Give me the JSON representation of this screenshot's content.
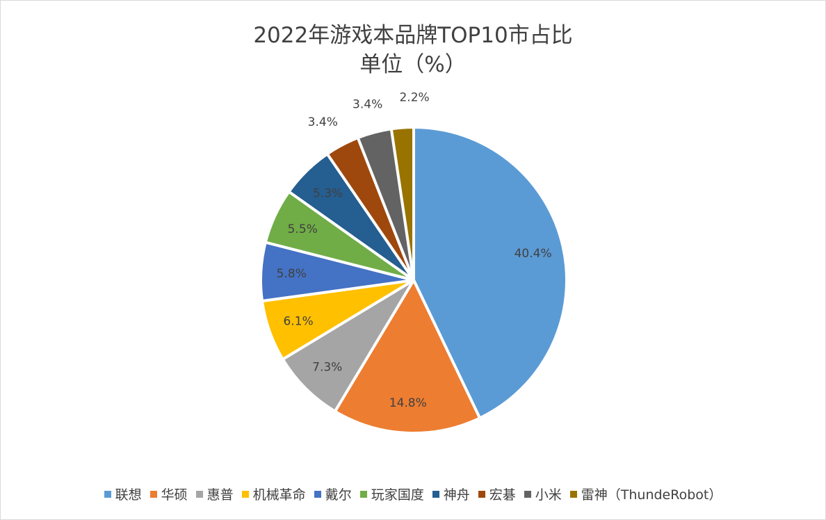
{
  "chart_data": {
    "type": "pie",
    "title": "2022年游戏本品牌TOP10市占比",
    "subtitle": "单位（%）",
    "legend_position": "bottom",
    "slices": [
      {
        "name": "联想",
        "value": 40.4,
        "label": "40.4%",
        "color": "#5B9BD5"
      },
      {
        "name": "华硕",
        "value": 14.8,
        "label": "14.8%",
        "color": "#ED7D31"
      },
      {
        "name": "惠普",
        "value": 7.3,
        "label": "7.3%",
        "color": "#A5A5A5"
      },
      {
        "name": "机械革命",
        "value": 6.1,
        "label": "6.1%",
        "color": "#FFC000"
      },
      {
        "name": "戴尔",
        "value": 5.8,
        "label": "5.8%",
        "color": "#4472C4"
      },
      {
        "name": "玩家国度",
        "value": 5.5,
        "label": "5.5%",
        "color": "#70AD47"
      },
      {
        "name": "神舟",
        "value": 5.3,
        "label": "5.3%",
        "color": "#255E91"
      },
      {
        "name": "宏碁",
        "value": 3.4,
        "label": "3.4%",
        "color": "#9E480E"
      },
      {
        "name": "小米",
        "value": 3.4,
        "label": "3.4%",
        "color": "#636363"
      },
      {
        "name": "雷神（ThundeRobot）",
        "value": 2.2,
        "label": "2.2%",
        "color": "#997300"
      }
    ]
  }
}
